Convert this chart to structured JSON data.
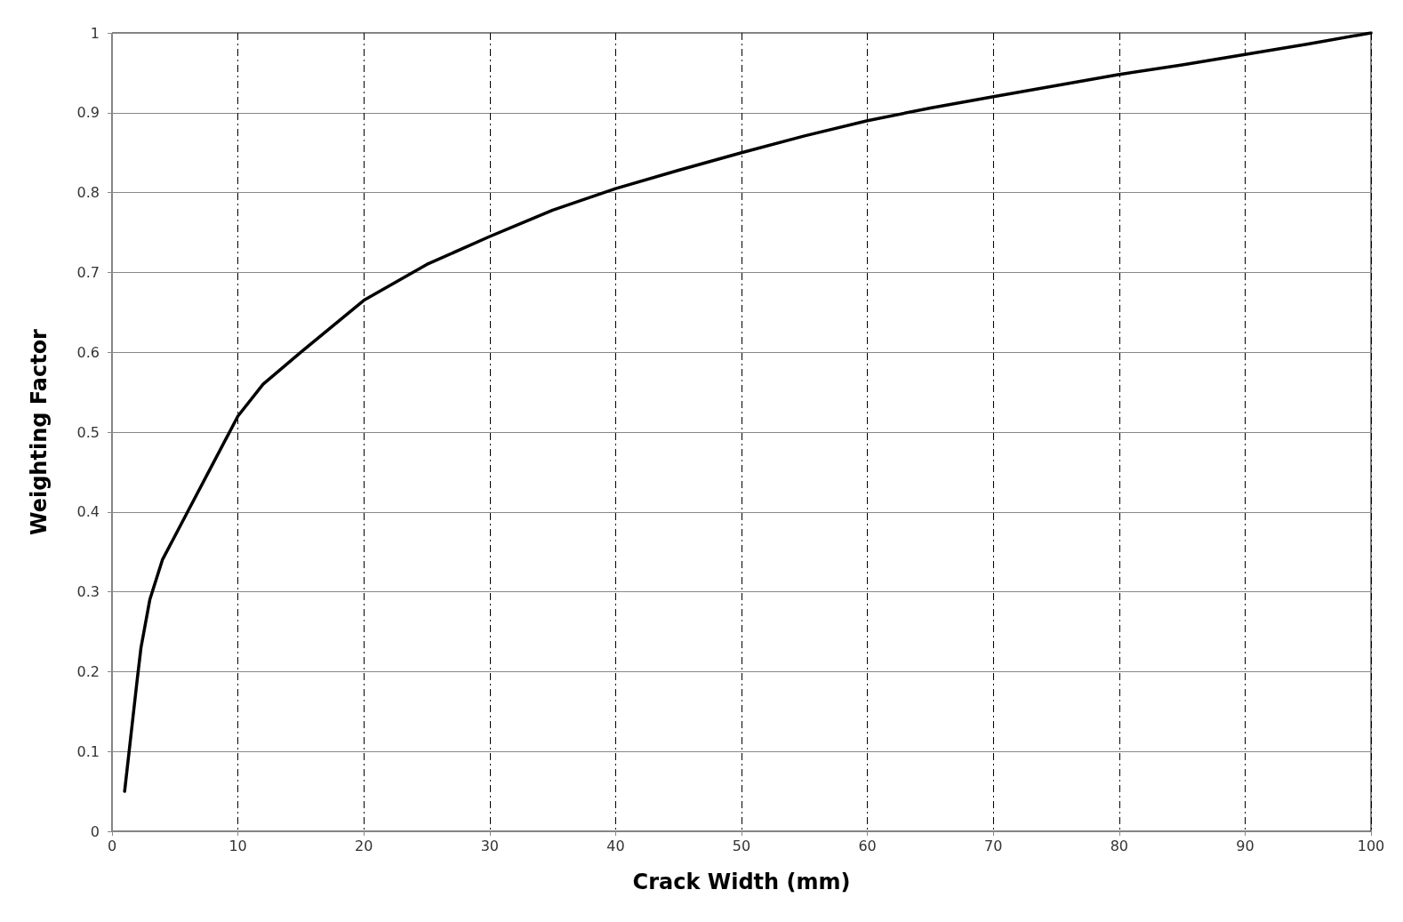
{
  "chart_data": {
    "type": "line",
    "xlabel": "Crack Width (mm)",
    "ylabel": "Weighting Factor",
    "x": [
      1,
      1.5,
      2,
      2.3,
      3,
      4,
      5,
      6,
      8,
      10,
      12,
      15,
      20,
      25,
      30,
      35,
      40,
      45,
      50,
      55,
      60,
      65,
      70,
      75,
      80,
      85,
      90,
      95,
      100
    ],
    "series": [
      {
        "color": "#000000",
        "values": [
          0.05,
          0.12,
          0.19,
          0.23,
          0.29,
          0.34,
          0.37,
          0.4,
          0.46,
          0.52,
          0.56,
          0.6,
          0.665,
          0.71,
          0.745,
          0.778,
          0.805,
          0.828,
          0.85,
          0.871,
          0.89,
          0.906,
          0.92,
          0.934,
          0.948,
          0.96,
          0.973,
          0.986,
          1.0
        ]
      }
    ],
    "xlim": [
      0,
      100
    ],
    "xticks": [
      0,
      10,
      20,
      30,
      40,
      50,
      60,
      70,
      80,
      90,
      100
    ],
    "ylim": [
      0,
      1
    ],
    "yticks": [
      0,
      0.1,
      0.2,
      0.3,
      0.4,
      0.5,
      0.6,
      0.7,
      0.8,
      0.9,
      1
    ],
    "grid": true,
    "marker": "none",
    "line_style": "solid"
  }
}
